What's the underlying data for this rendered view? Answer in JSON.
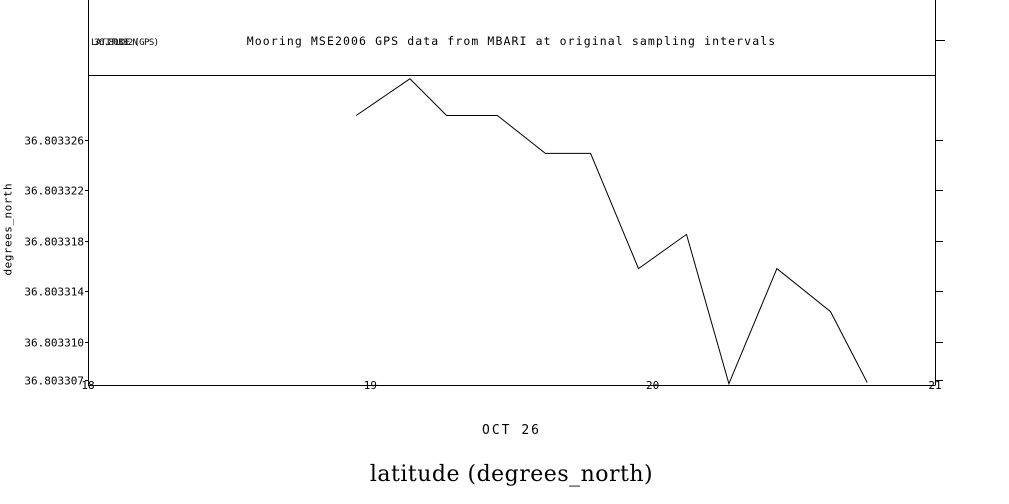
{
  "app": {
    "background": "#ffffff",
    "foreground": "#000000"
  },
  "legend": {
    "line1": "LATITUDE (GPS)",
    "line2": "36.80332N"
  },
  "chart_data": {
    "type": "line",
    "title": "Mooring MSE2006 GPS data from MBARI at original sampling intervals",
    "x_axis_label": "OCT 26",
    "y_axis_label": "degrees_north",
    "caption": "latitude (degrees_north)",
    "grid": false,
    "legend_position": "top-left",
    "xlim": [
      18,
      21
    ],
    "ylim": [
      36.8033066,
      36.8033311
    ],
    "x_ticks": [
      {
        "label": "18",
        "value": 18
      },
      {
        "label": "19",
        "value": 19
      },
      {
        "label": "20",
        "value": 20
      },
      {
        "label": "21",
        "value": 21
      }
    ],
    "y_ticks": [
      {
        "label": "36.803326",
        "value": 36.803326
      },
      {
        "label": "36.803322",
        "value": 36.803322
      },
      {
        "label": "36.803318",
        "value": 36.803318
      },
      {
        "label": "36.803314",
        "value": 36.803314
      },
      {
        "label": "36.803310",
        "value": 36.80331
      },
      {
        "label": "36.803307",
        "value": 36.803307
      }
    ],
    "series": [
      {
        "name": "LATITUDE (GPS)",
        "x": [
          18.95,
          19.14,
          19.27,
          19.45,
          19.62,
          19.78,
          19.95,
          20.12,
          20.27,
          20.44,
          20.63,
          20.76
        ],
        "y": [
          36.8033279,
          36.8033308,
          36.8033279,
          36.8033279,
          36.8033249,
          36.8033249,
          36.8033158,
          36.8033185,
          36.8033067,
          36.8033158,
          36.8033124,
          36.8033068
        ]
      }
    ]
  }
}
